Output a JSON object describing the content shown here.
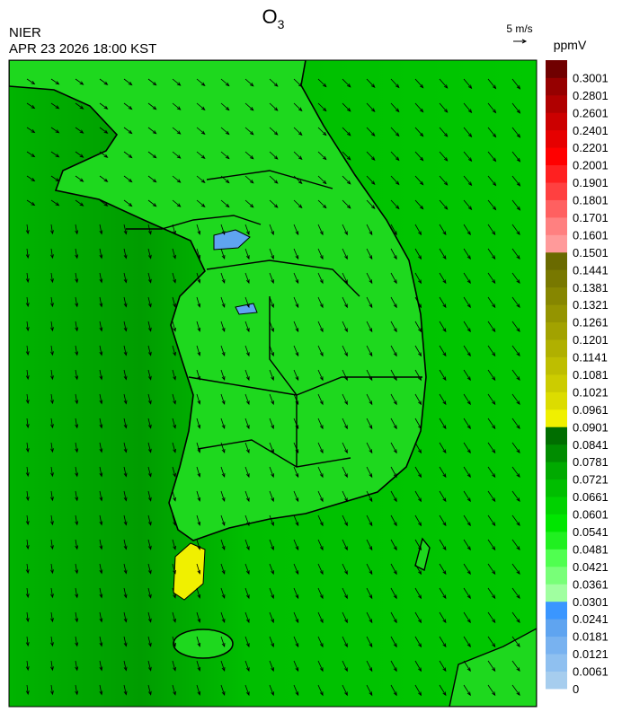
{
  "header": {
    "title": "O",
    "title_subscript": "3",
    "agency": "NIER",
    "datetime": "APR 23 2026 18:00 KST",
    "wind_scale": "5 m/s"
  },
  "colorbar": {
    "unit": "ppmV",
    "levels": [
      0,
      0.0061,
      0.0121,
      0.0181,
      0.0241,
      0.0301,
      0.0361,
      0.0421,
      0.0481,
      0.0541,
      0.0601,
      0.0661,
      0.0721,
      0.0781,
      0.0841,
      0.0901,
      0.0961,
      0.1021,
      0.1081,
      0.1141,
      0.1201,
      0.1261,
      0.1321,
      0.1381,
      0.1441,
      0.1501,
      0.1601,
      0.1701,
      0.1801,
      0.1901,
      0.2001,
      0.2201,
      0.2401,
      0.2601,
      0.2801,
      0.3001
    ],
    "colors": [
      "#a6cdee",
      "#8fc0f0",
      "#78b2f0",
      "#5fa4f0",
      "#3a96ff",
      "#a0ffa0",
      "#78ff78",
      "#50ff50",
      "#20f020",
      "#00e600",
      "#00d200",
      "#00be00",
      "#00aa00",
      "#008c00",
      "#006e00",
      "#f0f000",
      "#dcdc00",
      "#cccc00",
      "#bebe00",
      "#b0b000",
      "#a2a200",
      "#949400",
      "#868600",
      "#787800",
      "#6a6a00",
      "#ff9a9a",
      "#ff8080",
      "#ff6060",
      "#ff4040",
      "#ff2020",
      "#ff0000",
      "#e60000",
      "#cc0000",
      "#b00000",
      "#960000",
      "#700000"
    ]
  }
}
